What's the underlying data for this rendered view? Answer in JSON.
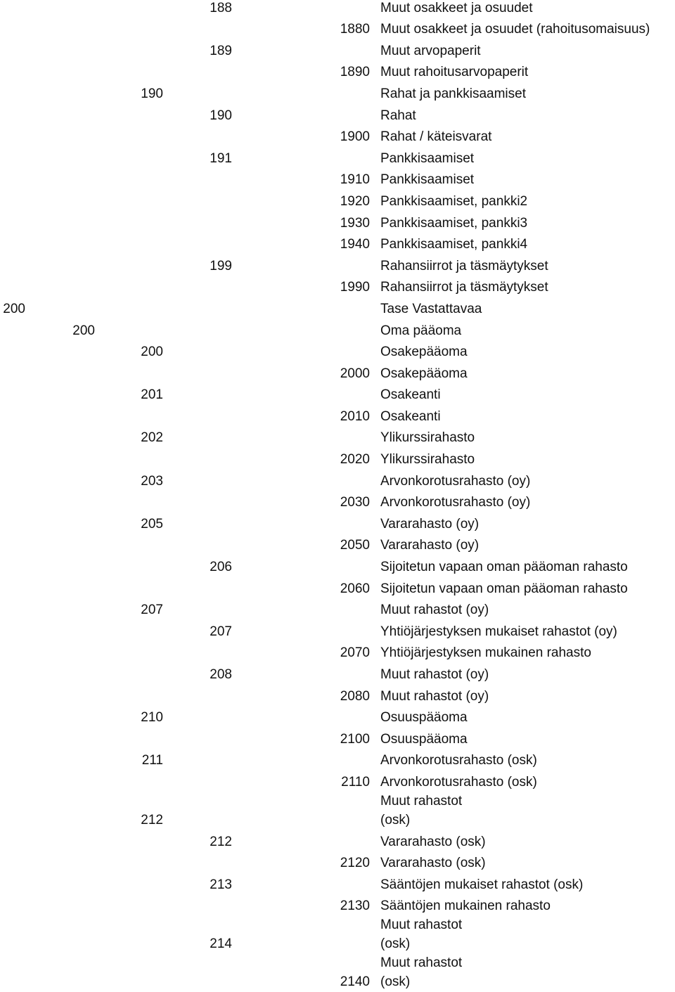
{
  "rows": [
    {
      "col": 4,
      "code": "188",
      "label": "Muut osakkeet ja osuudet"
    },
    {
      "col": 5,
      "code": "1880",
      "label": "Muut osakkeet ja osuudet (rahoitusomaisuus)"
    },
    {
      "col": 4,
      "code": "189",
      "label": "Muut arvopaperit"
    },
    {
      "col": 5,
      "code": "1890",
      "label": "Muut rahoitusarvopaperit"
    },
    {
      "col": 3,
      "code": "190",
      "label": "Rahat ja pankkisaamiset"
    },
    {
      "col": 4,
      "code": "190",
      "label": "Rahat"
    },
    {
      "col": 5,
      "code": "1900",
      "label": "Rahat / käteisvarat"
    },
    {
      "col": 4,
      "code": "191",
      "label": "Pankkisaamiset"
    },
    {
      "col": 5,
      "code": "1910",
      "label": "Pankkisaamiset"
    },
    {
      "col": 5,
      "code": "1920",
      "label": "Pankkisaamiset, pankki2"
    },
    {
      "col": 5,
      "code": "1930",
      "label": "Pankkisaamiset, pankki3"
    },
    {
      "col": 5,
      "code": "1940",
      "label": "Pankkisaamiset, pankki4"
    },
    {
      "col": 4,
      "code": "199",
      "label": "Rahansiirrot ja täsmäytykset"
    },
    {
      "col": 5,
      "code": "1990",
      "label": "Rahansiirrot ja täsmäytykset"
    },
    {
      "col": 1,
      "code": "200",
      "label": "Tase Vastattavaa"
    },
    {
      "col": 2,
      "code": "200",
      "label": "Oma pääoma"
    },
    {
      "col": 3,
      "code": "200",
      "label": "Osakepääoma"
    },
    {
      "col": 5,
      "code": "2000",
      "label": "Osakepääoma"
    },
    {
      "col": 3,
      "code": "201",
      "label": "Osakeanti"
    },
    {
      "col": 5,
      "code": "2010",
      "label": "Osakeanti"
    },
    {
      "col": 3,
      "code": "202",
      "label": "Ylikurssirahasto"
    },
    {
      "col": 5,
      "code": "2020",
      "label": "Ylikurssirahasto"
    },
    {
      "col": 3,
      "code": "203",
      "label": "Arvonkorotusrahasto (oy)"
    },
    {
      "col": 5,
      "code": "2030",
      "label": "Arvonkorotusrahasto (oy)"
    },
    {
      "col": 3,
      "code": "205",
      "label": "Vararahasto (oy)"
    },
    {
      "col": 5,
      "code": "2050",
      "label": "Vararahasto (oy)"
    },
    {
      "col": 4,
      "code": "206",
      "label": "Sijoitetun vapaan oman pääoman rahasto"
    },
    {
      "col": 5,
      "code": "2060",
      "label": "Sijoitetun vapaan oman pääoman rahasto"
    },
    {
      "col": 3,
      "code": "207",
      "label": "Muut rahastot (oy)"
    },
    {
      "col": 4,
      "code": "207",
      "label": "Yhtiöjärjestyksen mukaiset rahastot (oy)"
    },
    {
      "col": 5,
      "code": "2070",
      "label": "Yhtiöjärjestyksen mukainen rahasto"
    },
    {
      "col": 4,
      "code": "208",
      "label": "Muut rahastot (oy)"
    },
    {
      "col": 5,
      "code": "2080",
      "label": "Muut rahastot (oy)"
    },
    {
      "col": 3,
      "code": "210",
      "label": "Osuuspääoma"
    },
    {
      "col": 5,
      "code": "2100",
      "label": "Osuuspääoma"
    },
    {
      "col": 3,
      "code": "211",
      "label": "Arvonkorotusrahasto (osk)"
    },
    {
      "col": 5,
      "code": "2110",
      "label": "Arvonkorotusrahasto (osk)"
    },
    {
      "col": 3,
      "code": "212",
      "label": "Muut rahastot (osk)",
      "tall": true
    },
    {
      "col": 4,
      "code": "212",
      "label": "Vararahasto (osk)"
    },
    {
      "col": 5,
      "code": "2120",
      "label": "Vararahasto (osk)"
    },
    {
      "col": 4,
      "code": "213",
      "label": "Sääntöjen mukaiset rahastot (osk)"
    },
    {
      "col": 5,
      "code": "2130",
      "label": "Sääntöjen mukainen rahasto"
    },
    {
      "col": 4,
      "code": "214",
      "label": "Muut rahastot (osk)",
      "tall": true
    },
    {
      "col": 5,
      "code": "2140",
      "label": "Muut rahastot (osk)",
      "tall": true
    }
  ]
}
